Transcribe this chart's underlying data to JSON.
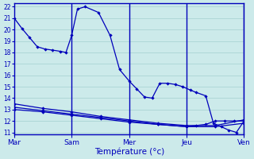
{
  "background_color": "#cceaea",
  "grid_color": "#aad4d4",
  "line_color": "#0000bb",
  "xlabel": "Température (°c)",
  "ylim": [
    10.8,
    22.3
  ],
  "yticks": [
    11,
    12,
    13,
    14,
    15,
    16,
    17,
    18,
    19,
    20,
    21,
    22
  ],
  "day_labels": [
    "Mar",
    "Sam",
    "Mer",
    "Jeu",
    "Ven"
  ],
  "day_positions": [
    0,
    30,
    60,
    90,
    120
  ],
  "vline_positions": [
    30,
    60,
    90,
    120
  ],
  "s1_x": [
    0,
    4,
    8,
    12,
    16,
    20,
    24,
    27,
    30,
    33,
    37,
    44,
    50,
    55,
    60,
    64,
    68,
    72,
    76,
    80,
    84,
    88,
    92,
    95,
    100,
    104,
    108,
    112,
    116,
    120
  ],
  "s1_y": [
    21.0,
    20.1,
    19.3,
    18.5,
    18.3,
    18.2,
    18.1,
    18.0,
    19.5,
    21.8,
    22.0,
    21.5,
    19.5,
    16.5,
    15.5,
    14.8,
    14.1,
    14.0,
    15.3,
    15.3,
    15.2,
    15.0,
    14.7,
    14.5,
    14.2,
    11.8,
    11.5,
    11.2,
    11.0,
    12.0
  ],
  "s2_x": [
    0,
    15,
    30,
    45,
    60,
    75,
    90,
    105,
    120
  ],
  "s2_y": [
    13.5,
    13.1,
    12.8,
    12.4,
    12.1,
    11.8,
    11.6,
    11.6,
    12.1
  ],
  "s3_x": [
    0,
    15,
    30,
    45,
    60,
    75,
    90,
    105,
    120
  ],
  "s3_y": [
    13.0,
    12.8,
    12.5,
    12.2,
    11.9,
    11.7,
    11.5,
    11.5,
    11.8
  ],
  "s4_x": [
    0,
    15,
    30,
    45,
    60,
    75,
    90,
    95,
    100,
    105,
    110,
    115,
    120
  ],
  "s4_y": [
    13.2,
    12.9,
    12.6,
    12.3,
    12.0,
    11.7,
    11.5,
    11.6,
    11.7,
    12.0,
    12.0,
    12.0,
    12.0
  ],
  "markersize": 2.2,
  "linewidth": 0.9
}
